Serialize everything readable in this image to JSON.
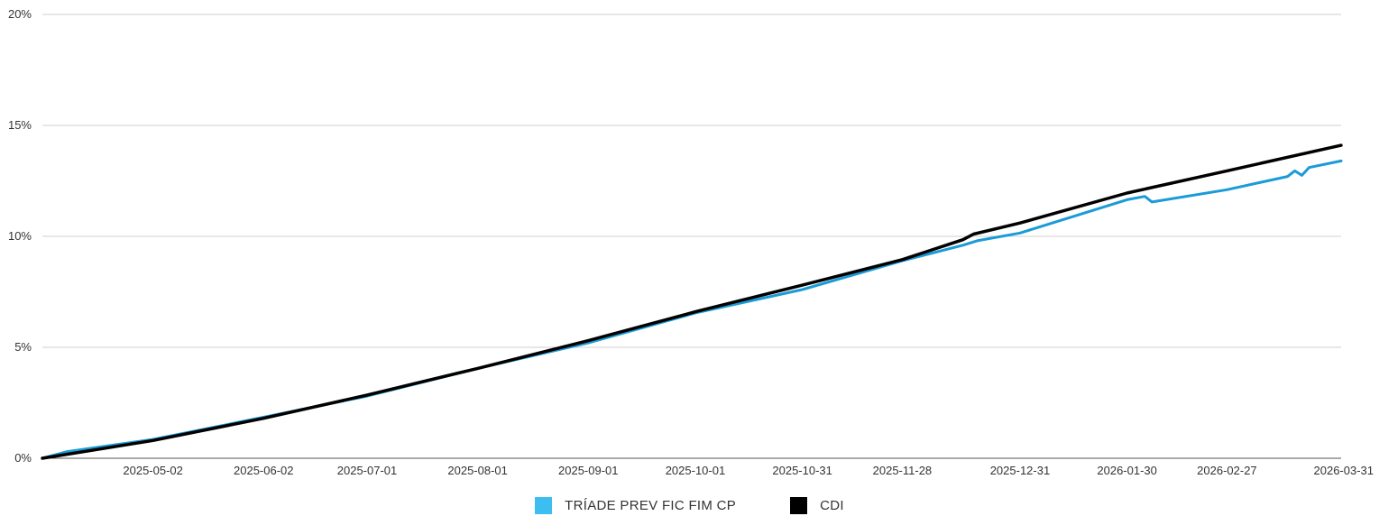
{
  "chart_data": {
    "type": "line",
    "title": "",
    "xlabel": "",
    "ylabel": "",
    "y_axis": {
      "min": 0,
      "max": 20,
      "ticks": [
        0,
        5,
        10,
        15,
        20
      ],
      "tick_labels": [
        "0%",
        "5%",
        "10%",
        "15%",
        "20%"
      ]
    },
    "x_axis": {
      "min": "2025-04-01",
      "max": "2026-03-31",
      "ticks": [
        "2025-05-02",
        "2025-06-02",
        "2025-07-01",
        "2025-08-01",
        "2025-09-01",
        "2025-10-01",
        "2025-10-31",
        "2025-11-28",
        "2025-12-31",
        "2026-01-30",
        "2026-02-27",
        "2026-03-31"
      ]
    },
    "grid": "horizontal",
    "legend_position": "bottom-center",
    "series": [
      {
        "name": "TRÍADE PREV FIC FIM CP",
        "color": "#1a9bd7",
        "legend_color": "#3dbdf0",
        "points": [
          [
            "2025-04-01",
            0.0
          ],
          [
            "2025-04-08",
            0.3
          ],
          [
            "2025-05-02",
            0.85
          ],
          [
            "2025-06-02",
            1.85
          ],
          [
            "2025-07-01",
            2.8
          ],
          [
            "2025-08-01",
            4.05
          ],
          [
            "2025-09-01",
            5.2
          ],
          [
            "2025-10-01",
            6.55
          ],
          [
            "2025-10-31",
            7.6
          ],
          [
            "2025-11-28",
            8.9
          ],
          [
            "2025-12-15",
            9.6
          ],
          [
            "2025-12-19",
            9.8
          ],
          [
            "2025-12-31",
            10.15
          ],
          [
            "2026-01-30",
            11.65
          ],
          [
            "2026-02-04",
            11.8
          ],
          [
            "2026-02-06",
            11.55
          ],
          [
            "2026-02-27",
            12.1
          ],
          [
            "2026-03-16",
            12.7
          ],
          [
            "2026-03-18",
            12.95
          ],
          [
            "2026-03-20",
            12.75
          ],
          [
            "2026-03-22",
            13.1
          ],
          [
            "2026-03-31",
            13.4
          ]
        ]
      },
      {
        "name": "CDI",
        "color": "#000000",
        "legend_color": "#000000",
        "points": [
          [
            "2025-04-01",
            0.0
          ],
          [
            "2025-05-02",
            0.8
          ],
          [
            "2025-06-02",
            1.8
          ],
          [
            "2025-07-01",
            2.85
          ],
          [
            "2025-08-01",
            4.05
          ],
          [
            "2025-09-01",
            5.3
          ],
          [
            "2025-10-01",
            6.6
          ],
          [
            "2025-10-31",
            7.8
          ],
          [
            "2025-11-28",
            8.95
          ],
          [
            "2025-12-15",
            9.85
          ],
          [
            "2025-12-18",
            10.1
          ],
          [
            "2025-12-31",
            10.6
          ],
          [
            "2026-01-30",
            11.95
          ],
          [
            "2026-02-27",
            12.95
          ],
          [
            "2026-03-31",
            14.1
          ]
        ]
      }
    ]
  }
}
